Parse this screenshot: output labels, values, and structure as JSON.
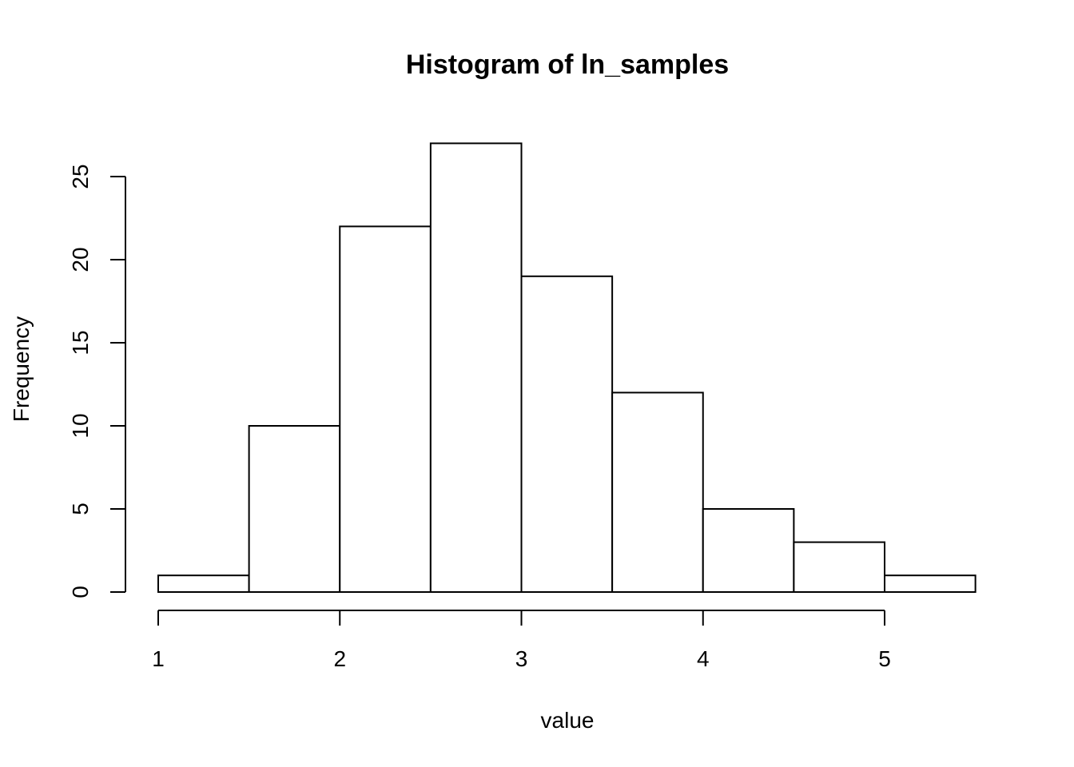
{
  "chart_data": {
    "type": "bar",
    "title": "Histogram of ln_samples",
    "xlabel": "value",
    "ylabel": "Frequency",
    "bins": [
      {
        "start": 1.0,
        "end": 1.5,
        "count": 1
      },
      {
        "start": 1.5,
        "end": 2.0,
        "count": 10
      },
      {
        "start": 2.0,
        "end": 2.5,
        "count": 22
      },
      {
        "start": 2.5,
        "end": 3.0,
        "count": 27
      },
      {
        "start": 3.0,
        "end": 3.5,
        "count": 19
      },
      {
        "start": 3.5,
        "end": 4.0,
        "count": 12
      },
      {
        "start": 4.0,
        "end": 4.5,
        "count": 5
      },
      {
        "start": 4.5,
        "end": 5.0,
        "count": 3
      },
      {
        "start": 5.0,
        "end": 5.5,
        "count": 1
      }
    ],
    "x_ticks": [
      "1",
      "2",
      "3",
      "4",
      "5"
    ],
    "y_ticks": [
      "0",
      "5",
      "10",
      "15",
      "20",
      "25"
    ],
    "xlim": [
      1,
      5
    ],
    "ylim": [
      0,
      25
    ],
    "grid": false,
    "colors": {
      "bar_fill": "#ffffff",
      "bar_stroke": "#000000"
    }
  }
}
